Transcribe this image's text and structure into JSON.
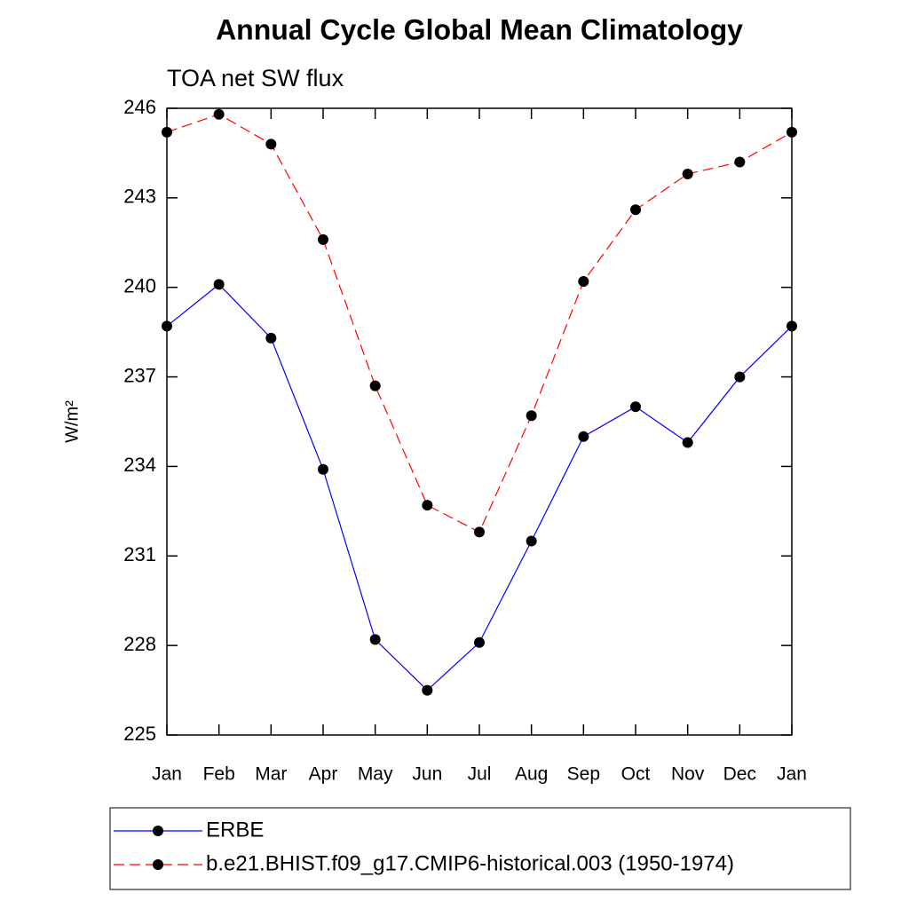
{
  "chart_data": {
    "type": "line",
    "title": "Annual Cycle Global Mean Climatology",
    "subtitle": "TOA net SW flux",
    "ylabel": "W/m²",
    "categories": [
      "Jan",
      "Feb",
      "Mar",
      "Apr",
      "May",
      "Jun",
      "Jul",
      "Aug",
      "Sep",
      "Oct",
      "Nov",
      "Dec",
      "Jan"
    ],
    "series": [
      {
        "name": "ERBE",
        "color": "#0000ff",
        "dash": false,
        "values": [
          238.7,
          240.1,
          238.3,
          233.9,
          228.2,
          226.5,
          228.1,
          231.5,
          235.0,
          236.0,
          234.8,
          237.0,
          238.7
        ]
      },
      {
        "name": "b.e21.BHIST.f09_g17.CMIP6-historical.003 (1950-1974)",
        "color": "#ff0000",
        "dash": true,
        "values": [
          245.2,
          245.8,
          244.8,
          241.6,
          236.7,
          232.7,
          231.8,
          235.7,
          240.2,
          242.6,
          243.8,
          244.2,
          245.2
        ]
      }
    ],
    "ylim": [
      225,
      246
    ],
    "yticks": [
      225,
      228,
      231,
      234,
      237,
      240,
      243,
      246
    ],
    "marker_color": "#000000",
    "legend": "bottom"
  }
}
